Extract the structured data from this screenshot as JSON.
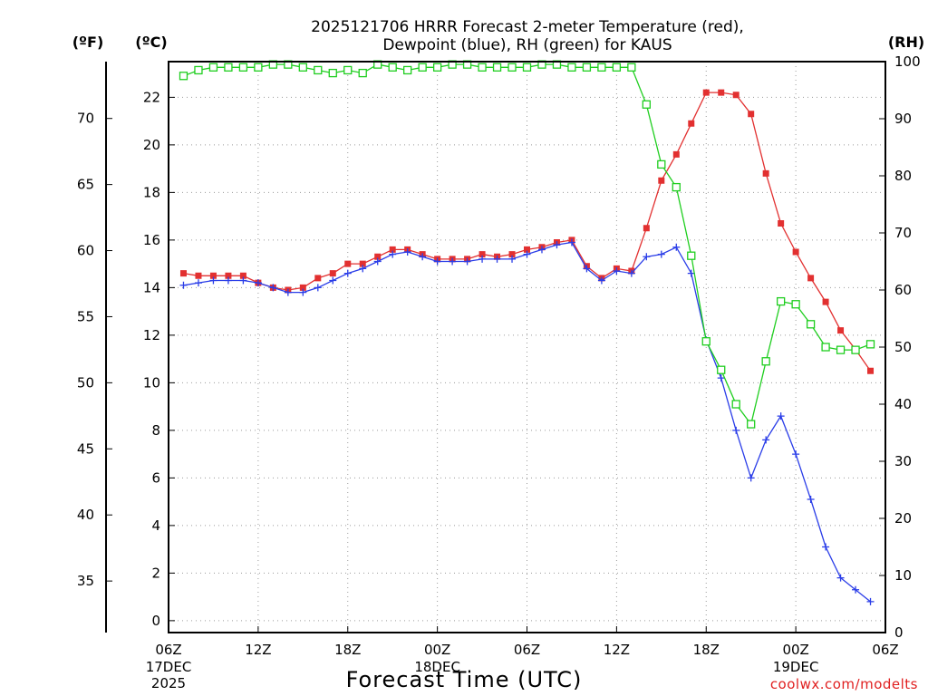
{
  "chart_data": {
    "type": "line",
    "title_line1": "2025121706 HRRR Forecast 2-meter Temperature (red),",
    "title_line2": "Dewpoint (blue), RH (green) for KAUS",
    "xlabel": "Forecast Time (UTC)",
    "credit": "coolwx.com/modelts",
    "units": {
      "fahrenheit": "(ºF)",
      "celsius": "(ºC)",
      "rh": "(RH)"
    },
    "x_range_hours": [
      0,
      48
    ],
    "y_celsius_range": [
      -0.5,
      23.5
    ],
    "y_rh_range": [
      0,
      100
    ],
    "x_ticks": [
      {
        "hour": 0,
        "label": "06Z",
        "sub1": "17DEC",
        "sub2": "2025"
      },
      {
        "hour": 6,
        "label": "12Z",
        "sub1": "",
        "sub2": ""
      },
      {
        "hour": 12,
        "label": "18Z",
        "sub1": "",
        "sub2": ""
      },
      {
        "hour": 18,
        "label": "00Z",
        "sub1": "18DEC",
        "sub2": ""
      },
      {
        "hour": 24,
        "label": "06Z",
        "sub1": "",
        "sub2": ""
      },
      {
        "hour": 30,
        "label": "12Z",
        "sub1": "",
        "sub2": ""
      },
      {
        "hour": 36,
        "label": "18Z",
        "sub1": "",
        "sub2": ""
      },
      {
        "hour": 42,
        "label": "00Z",
        "sub1": "19DEC",
        "sub2": ""
      },
      {
        "hour": 48,
        "label": "06Z",
        "sub1": "",
        "sub2": ""
      }
    ],
    "y_celsius_ticks": [
      "0",
      "2",
      "4",
      "6",
      "8",
      "10",
      "12",
      "14",
      "16",
      "18",
      "20",
      "22"
    ],
    "y_fahrenheit_ticks": [
      "35",
      "40",
      "45",
      "50",
      "55",
      "60",
      "65",
      "70"
    ],
    "y_rh_ticks": [
      "0",
      "10",
      "20",
      "30",
      "40",
      "50",
      "60",
      "70",
      "80",
      "90",
      "100"
    ],
    "series": [
      {
        "name": "Temperature (°C)",
        "color": "#e23030",
        "marker": "square-filled",
        "axis": "celsius",
        "values": [
          14.6,
          14.5,
          14.5,
          14.5,
          14.5,
          14.2,
          14.0,
          13.9,
          14.0,
          14.4,
          14.6,
          15.0,
          15.0,
          15.3,
          15.6,
          15.6,
          15.4,
          15.2,
          15.2,
          15.2,
          15.4,
          15.3,
          15.4,
          15.6,
          15.7,
          15.9,
          16.0,
          14.9,
          14.4,
          14.8,
          14.7,
          16.5,
          18.5,
          19.6,
          20.9,
          22.2,
          22.2,
          22.1,
          21.3,
          18.8,
          16.7,
          15.5,
          14.4,
          13.4,
          12.2,
          11.4,
          10.5
        ]
      },
      {
        "name": "Dewpoint (°C)",
        "color": "#2a3de8",
        "marker": "plus",
        "axis": "celsius",
        "values": [
          14.1,
          14.2,
          14.3,
          14.3,
          14.3,
          14.2,
          14.0,
          13.8,
          13.8,
          14.0,
          14.3,
          14.6,
          14.8,
          15.1,
          15.4,
          15.5,
          15.3,
          15.1,
          15.1,
          15.1,
          15.2,
          15.2,
          15.2,
          15.4,
          15.6,
          15.8,
          15.9,
          14.8,
          14.3,
          14.7,
          14.6,
          15.3,
          15.4,
          15.7,
          14.6,
          11.8,
          10.2,
          8.0,
          6.0,
          7.6,
          8.6,
          7.0,
          5.1,
          3.1,
          1.8,
          1.3,
          0.8
        ]
      },
      {
        "name": "RH (%)",
        "color": "#1fce1f",
        "marker": "square-open",
        "axis": "rh",
        "values": [
          97.5,
          98.5,
          99.0,
          99.0,
          99.0,
          99.0,
          99.5,
          99.5,
          99.0,
          98.5,
          98.0,
          98.5,
          98.0,
          99.5,
          99.0,
          98.5,
          99.0,
          99.0,
          99.5,
          99.5,
          99.0,
          99.0,
          99.0,
          99.0,
          99.5,
          99.5,
          99.0,
          99.0,
          99.0,
          99.0,
          99.0,
          92.5,
          82.0,
          78.0,
          66.0,
          51.0,
          46.0,
          40.0,
          36.5,
          47.5,
          58.0,
          57.5,
          54.0,
          50.0,
          49.5,
          49.5,
          50.5
        ]
      }
    ]
  }
}
